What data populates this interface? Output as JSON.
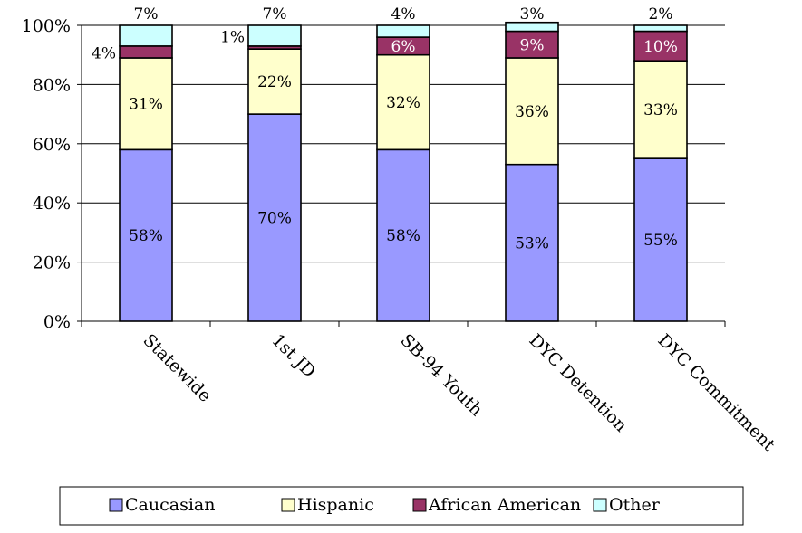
{
  "chart_data": {
    "type": "bar",
    "stacked": true,
    "categories": [
      "Statewide",
      "1st JD",
      "SB-94 Youth",
      "DYC Detention",
      "DYC Commitment"
    ],
    "series": [
      {
        "name": "Caucasian",
        "color": "#9999FF",
        "values": [
          58,
          70,
          58,
          53,
          55
        ],
        "labels": [
          "58%",
          "70%",
          "58%",
          "53%",
          "55%"
        ]
      },
      {
        "name": "Hispanic",
        "color": "#FFFFCC",
        "values": [
          31,
          22,
          32,
          36,
          33
        ],
        "labels": [
          "31%",
          "22%",
          "32%",
          "36%",
          "33%"
        ]
      },
      {
        "name": "African American",
        "color": "#993366",
        "values": [
          4,
          1,
          6,
          9,
          10
        ],
        "labels": [
          "4%",
          "1%",
          "6%",
          "9%",
          "10%"
        ]
      },
      {
        "name": "Other",
        "color": "#CCFFFF",
        "values": [
          7,
          7,
          4,
          3,
          2
        ],
        "labels": [
          "7%",
          "7%",
          "4%",
          "3%",
          "2%"
        ]
      }
    ],
    "ylim": [
      0,
      100
    ],
    "yticks": [
      {
        "value": 0,
        "label": "0%"
      },
      {
        "value": 20,
        "label": "20%"
      },
      {
        "value": 40,
        "label": "40%"
      },
      {
        "value": 60,
        "label": "60%"
      },
      {
        "value": 80,
        "label": "80%"
      },
      {
        "value": 100,
        "label": "100%"
      }
    ],
    "grid": true,
    "legend": "bottom",
    "title": "",
    "xlabel": "",
    "ylabel": ""
  }
}
